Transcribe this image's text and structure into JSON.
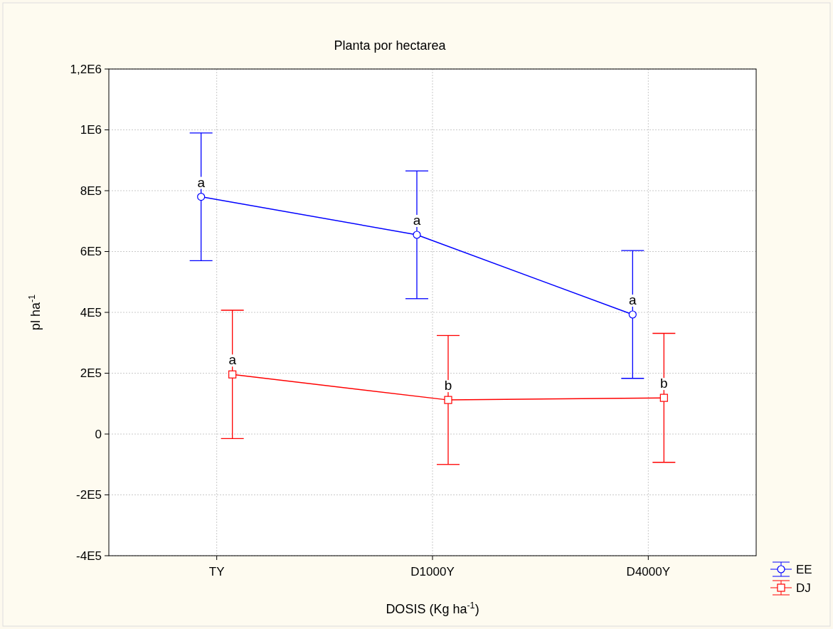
{
  "chart_data": {
    "type": "line",
    "title": "Planta por hectarea",
    "xlabel": "DOSIS (Kg ha$^{-1}$)",
    "ylabel": "pl ha$^{-1}$",
    "categories": [
      "TY",
      "D1000Y",
      "D4000Y"
    ],
    "series": [
      {
        "name": "EE",
        "color": "#0000ff",
        "marker": "circle",
        "values": [
          780000,
          655000,
          393000
        ],
        "value_labels": [
          "a",
          "a",
          "a"
        ],
        "errors": [
          210000,
          210000,
          210000
        ]
      },
      {
        "name": "DJ",
        "color": "#ff0000",
        "marker": "square",
        "values": [
          196000,
          112000,
          119000
        ],
        "value_labels": [
          "a",
          "b",
          "b"
        ],
        "errors": [
          211000,
          212000,
          212000
        ]
      }
    ],
    "ylim": [
      -400000,
      1200000
    ],
    "yticks": [
      {
        "value": -400000,
        "label": "-4E5"
      },
      {
        "value": -200000,
        "label": "-2E5"
      },
      0,
      {
        "value": 200000,
        "label": "2E5"
      },
      {
        "value": 400000,
        "label": "4E5"
      },
      {
        "value": 600000,
        "label": "6E5"
      },
      {
        "value": 800000,
        "label": "8E5"
      },
      {
        "value": 1000000,
        "label": "1E6"
      },
      {
        "value": 1200000,
        "label": "1,2E6"
      }
    ],
    "grid": true,
    "legend": "bottom right",
    "line_style": "solid"
  }
}
